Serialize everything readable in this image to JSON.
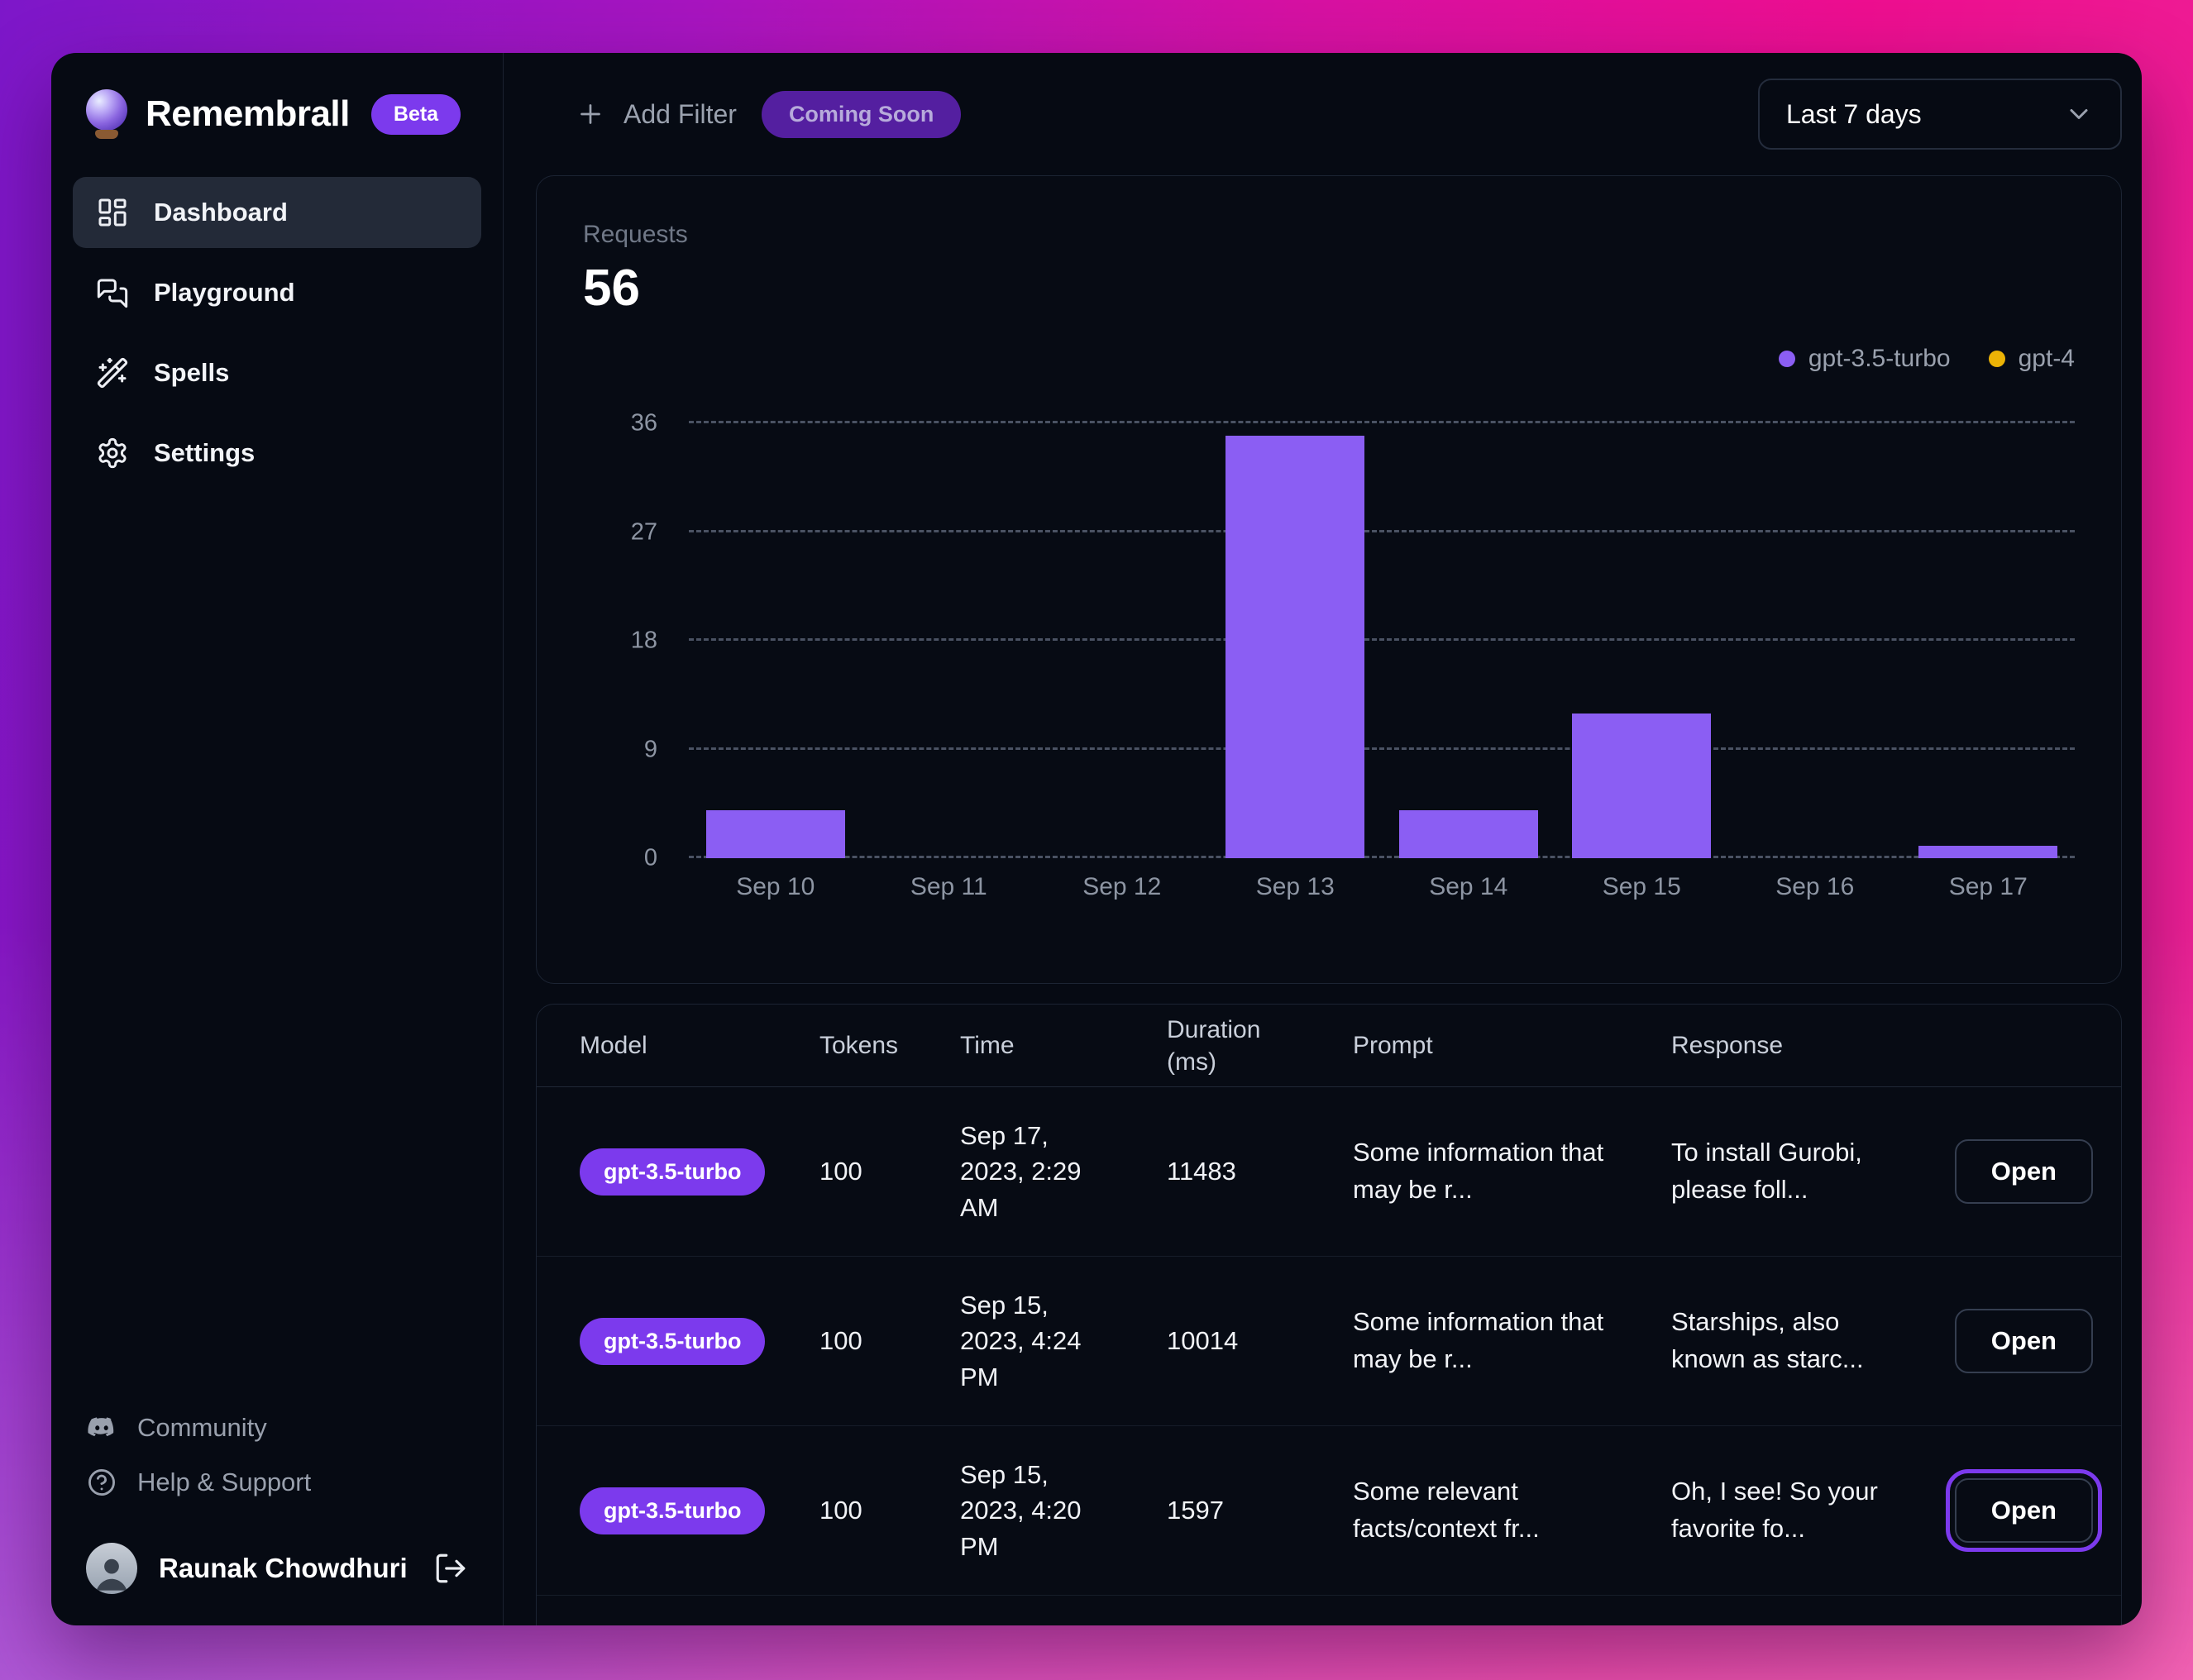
{
  "app": {
    "name": "Remembrall",
    "badge": "Beta"
  },
  "sidebar": {
    "items": [
      {
        "label": "Dashboard",
        "active": true
      },
      {
        "label": "Playground",
        "active": false
      },
      {
        "label": "Spells",
        "active": false
      },
      {
        "label": "Settings",
        "active": false
      }
    ],
    "footer_items": [
      {
        "label": "Community",
        "icon": "discord-icon"
      },
      {
        "label": "Help & Support",
        "icon": "help-circle-icon"
      }
    ],
    "user": {
      "name": "Raunak Chowdhuri"
    }
  },
  "topbar": {
    "add_filter_label": "Add Filter",
    "coming_soon_badge": "Coming Soon",
    "date_range_value": "Last 7 days"
  },
  "chart_card": {
    "metric_label": "Requests",
    "metric_value": "56"
  },
  "chart_data": {
    "type": "bar",
    "title": "Requests",
    "total": 56,
    "categories": [
      "Sep 10",
      "Sep 11",
      "Sep 12",
      "Sep 13",
      "Sep 14",
      "Sep 15",
      "Sep 16",
      "Sep 17"
    ],
    "series": [
      {
        "name": "gpt-3.5-turbo",
        "color": "#8b5ef3",
        "values": [
          4,
          0,
          0,
          35,
          4,
          12,
          0,
          1
        ]
      },
      {
        "name": "gpt-4",
        "color": "#ecb306",
        "values": [
          0,
          0,
          0,
          0,
          0,
          0,
          0,
          0
        ]
      }
    ],
    "xlabel": "",
    "ylabel": "",
    "ylim": [
      0,
      36
    ],
    "yticks": [
      0,
      9,
      18,
      27,
      36
    ],
    "grid": "horizontal-dashed",
    "legend_position": "top-right"
  },
  "table": {
    "columns": [
      "Model",
      "Tokens",
      "Time",
      "Duration (ms)",
      "Prompt",
      "Response"
    ],
    "rows": [
      {
        "model": "gpt-3.5-turbo",
        "tokens": "100",
        "time": "Sep 17, 2023, 2:29 AM",
        "duration_ms": "11483",
        "prompt": "Some information that may be r...",
        "response": "To install Gurobi, please foll...",
        "open_label": "Open",
        "open_focused": false
      },
      {
        "model": "gpt-3.5-turbo",
        "tokens": "100",
        "time": "Sep 15, 2023, 4:24 PM",
        "duration_ms": "10014",
        "prompt": "Some information that may be r...",
        "response": "Starships, also known as starc...",
        "open_label": "Open",
        "open_focused": false
      },
      {
        "model": "gpt-3.5-turbo",
        "tokens": "100",
        "time": "Sep 15, 2023, 4:20 PM",
        "duration_ms": "1597",
        "prompt": "Some relevant facts/context fr...",
        "response": "Oh, I see! So your favorite fo...",
        "open_label": "Open",
        "open_focused": true
      }
    ]
  },
  "colors": {
    "accent": "#7c3aed",
    "bar_gpt35": "#8b5ef3",
    "dot_gpt4": "#ecb306",
    "window_bg": "#060a13",
    "card_border": "#1c2433",
    "muted_text": "#9aa1ae",
    "bg_gradient": [
      "#7d17c9",
      "#a815c0",
      "#d611a3",
      "#ee0e90"
    ]
  }
}
